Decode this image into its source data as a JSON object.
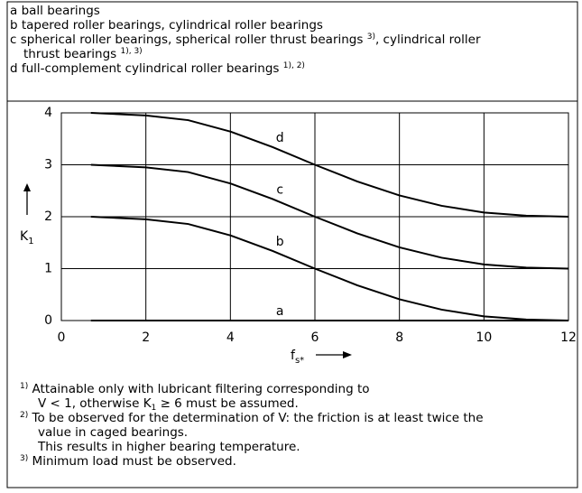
{
  "legend": [
    [
      {
        "t": "a ball bearings"
      }
    ],
    [
      {
        "t": "b tapered roller bearings, cylindrical roller bearings"
      }
    ],
    [
      {
        "t": "c spherical roller bearings, spherical roller thrust bearings "
      },
      {
        "sup": "3)"
      },
      {
        "t": ", cylindrical roller"
      }
    ],
    [
      {
        "t": "thrust bearings "
      },
      {
        "sup": "1), 3)"
      }
    ],
    [
      {
        "t": "d full-complement cylindrical roller bearings "
      },
      {
        "sup": "1), 2)"
      }
    ]
  ],
  "chart_data": {
    "type": "line",
    "x": [
      0.7,
      2,
      3,
      4,
      5,
      6,
      7,
      8,
      9,
      10,
      11,
      12
    ],
    "series": [
      {
        "name": "a",
        "color": "#000000",
        "values": [
          0,
          0,
          0,
          0,
          0,
          0,
          0,
          0,
          0,
          0,
          0,
          0
        ]
      },
      {
        "name": "b",
        "color": "#000000",
        "values": [
          2,
          1.95,
          1.86,
          1.64,
          1.34,
          1.0,
          0.68,
          0.41,
          0.21,
          0.08,
          0.02,
          0
        ]
      },
      {
        "name": "c",
        "color": "#000000",
        "values": [
          3,
          2.95,
          2.86,
          2.64,
          2.34,
          2.0,
          1.68,
          1.41,
          1.21,
          1.08,
          1.02,
          1.0
        ]
      },
      {
        "name": "d",
        "color": "#000000",
        "values": [
          4,
          3.95,
          3.86,
          3.64,
          3.34,
          3.0,
          2.68,
          2.41,
          2.21,
          2.08,
          2.02,
          2.0
        ]
      }
    ],
    "xlim": [
      0,
      12
    ],
    "xticks": [
      0,
      2,
      4,
      6,
      8,
      10,
      12
    ],
    "ylim": [
      0,
      4
    ],
    "yticks": [
      0,
      1,
      2,
      3,
      4
    ],
    "grid": true,
    "xlabel": {
      "main": "f",
      "sub": "s*"
    },
    "ylabel": {
      "main": "K",
      "sub": "1"
    }
  },
  "footnotes": [
    [
      [
        {
          "sup": "1)"
        },
        {
          "t": " Attainable only with lubricant filtering corresponding to"
        }
      ],
      [
        {
          "t": "V < 1, otherwise K"
        },
        {
          "sub": "1"
        },
        {
          "t": " ≥ 6 must be assumed."
        }
      ]
    ],
    [
      [
        {
          "sup": "2)"
        },
        {
          "t": " To be observed for the determination of V: the friction is at least twice the"
        }
      ],
      [
        {
          "t": "value in caged bearings."
        }
      ],
      [
        {
          "t": "This results in higher bearing temperature."
        }
      ]
    ],
    [
      [
        {
          "sup": "3)"
        },
        {
          "t": " Minimum load must be observed."
        }
      ]
    ]
  ]
}
